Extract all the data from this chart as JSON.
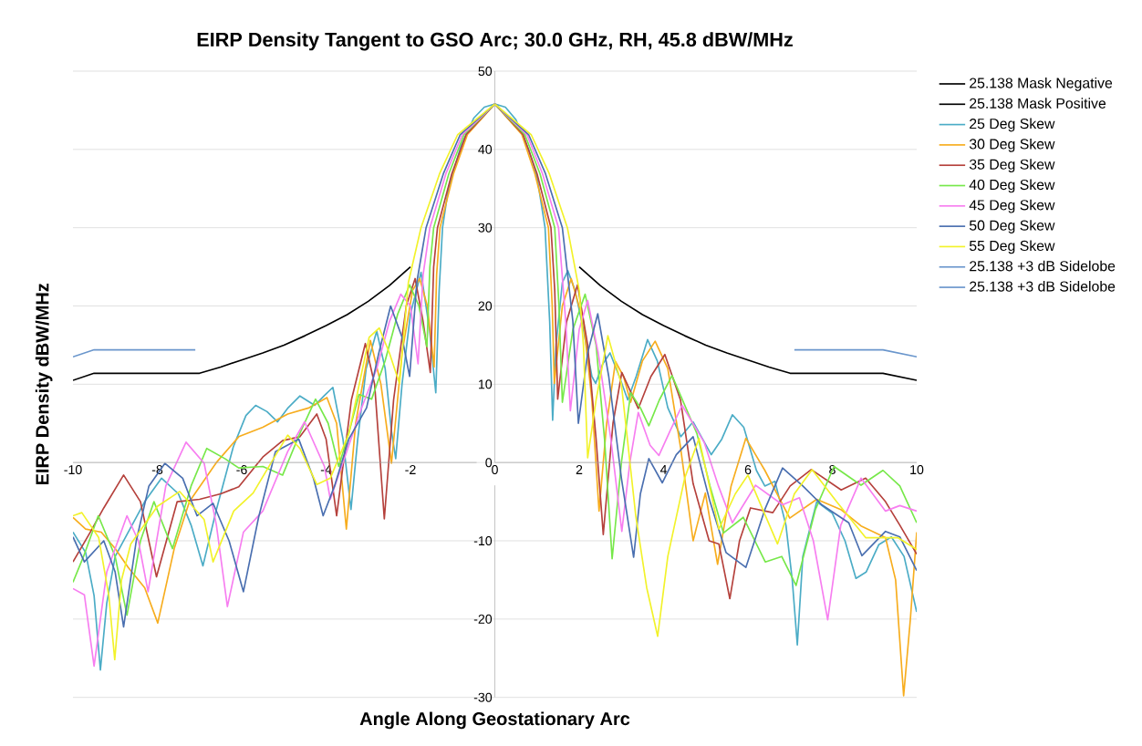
{
  "chart_data": {
    "type": "line",
    "title": "EIRP Density Tangent to GSO Arc; 30.0 GHz, RH, 45.8 dBW/MHz",
    "xlabel": "Angle Along Geostationary Arc",
    "ylabel": "EIRP Density dBW/MHz",
    "xlim": [
      -10,
      10
    ],
    "ylim": [
      -30,
      50
    ],
    "xticks": [
      -10,
      -8,
      -6,
      -4,
      -2,
      0,
      2,
      4,
      6,
      8,
      10
    ],
    "yticks": [
      -30,
      -20,
      -10,
      0,
      10,
      20,
      30,
      40,
      50
    ],
    "grid": "y",
    "legend": "right",
    "series": [
      {
        "name": "25.138 Mask Negative",
        "color": "#000000",
        "x": [
          -10,
          -9.5,
          -7,
          -6.5,
          -6,
          -5.5,
          -5,
          -4.5,
          -4,
          -3.5,
          -3,
          -2.5,
          -2
        ],
        "values": [
          10.5,
          11.4,
          11.4,
          12.2,
          13.1,
          14,
          15,
          16.2,
          17.5,
          18.9,
          20.6,
          22.6,
          25
        ]
      },
      {
        "name": "25.138 Mask Positive",
        "color": "#000000",
        "x": [
          2,
          2.5,
          3,
          3.5,
          4,
          4.5,
          5,
          5.5,
          6,
          6.5,
          7,
          9.2,
          10
        ],
        "values": [
          25,
          22.6,
          20.6,
          18.9,
          17.5,
          16.2,
          15,
          14,
          13.1,
          12.2,
          11.4,
          11.4,
          10.5
        ]
      },
      {
        "name": "25 Deg Skew",
        "color": "#4bacc6",
        "x": [
          -10,
          -9.7,
          -9.5,
          -9.35,
          -9.2,
          -9,
          -8.7,
          -8.3,
          -7.9,
          -7.5,
          -7.2,
          -6.92,
          -6.6,
          -6.2,
          -5.9,
          -5.67,
          -5.4,
          -5.15,
          -4.9,
          -4.62,
          -4.27,
          -4.05,
          -3.84,
          -3.6,
          -3.41,
          -3.25,
          -3.05,
          -2.8,
          -2.6,
          -2.45,
          -2.35,
          -2.2,
          -2,
          -1.75,
          -1.55,
          -1.4,
          -1.32,
          -1.24,
          -1.1,
          -0.8,
          -0.5,
          -0.25,
          0,
          0.25,
          0.5,
          0.8,
          1,
          1.19,
          1.3,
          1.37,
          1.45,
          1.6,
          1.73,
          1.9,
          2.1,
          2.3,
          2.39,
          2.55,
          2.73,
          2.95,
          3.15,
          3.35,
          3.62,
          3.85,
          4.1,
          4.41,
          4.7,
          5.13,
          5.38,
          5.63,
          5.9,
          6.2,
          6.4,
          6.64,
          6.9,
          7.05,
          7.17,
          7.3,
          7.63,
          8,
          8.3,
          8.56,
          8.8,
          9.1,
          9.4,
          9.7,
          10
        ],
        "values": [
          -8.9,
          -11.5,
          -17,
          -26.5,
          -18,
          -12,
          -9,
          -5,
          -2,
          -4,
          -8,
          -13.2,
          -6,
          2,
          6,
          7.3,
          6.5,
          5.2,
          7,
          8.5,
          7.3,
          8.5,
          9.6,
          3,
          -6,
          3,
          12,
          16.8,
          12,
          4,
          0.5,
          10,
          19,
          24.3,
          17,
          8.9,
          22,
          30,
          35,
          40.5,
          44,
          45.4,
          45.8,
          45.4,
          43.8,
          40,
          36.5,
          30,
          18,
          5.4,
          15,
          23,
          24.5,
          22,
          17,
          11,
          10.1,
          12.5,
          14,
          11,
          8,
          11,
          15.7,
          13,
          7,
          3.3,
          5.2,
          1,
          3,
          6.1,
          4.5,
          -1,
          -3,
          -2.4,
          -8,
          -15,
          -23.3,
          -12,
          -5,
          -6.5,
          -10,
          -14.8,
          -14,
          -10.5,
          -9.5,
          -12,
          -19.1
        ]
      },
      {
        "name": "30 Deg Skew",
        "color": "#f7ad1e",
        "x": [
          -10,
          -9.7,
          -9.33,
          -9,
          -8.69,
          -8.3,
          -7.99,
          -7.6,
          -7.24,
          -6.6,
          -6.07,
          -5.5,
          -4.91,
          -4.4,
          -3.98,
          -3.75,
          -3.52,
          -3.3,
          -2.95,
          -2.7,
          -2.45,
          -2.2,
          -1.95,
          -1.78,
          -1.6,
          -1.44,
          -1.38,
          -1.3,
          -0.98,
          -0.65,
          0,
          0.64,
          0.95,
          1.27,
          1.36,
          1.41,
          1.6,
          1.81,
          2.1,
          2.3,
          2.47,
          2.65,
          2.86,
          3.05,
          3.22,
          3.5,
          3.8,
          4.1,
          4.4,
          4.7,
          4.99,
          5.28,
          5.6,
          5.95,
          6.4,
          6.99,
          7.63,
          8.2,
          8.68,
          9.26,
          9.5,
          9.69,
          9.85,
          10
        ],
        "values": [
          -7,
          -8.5,
          -8.9,
          -11,
          -13.4,
          -16,
          -20.5,
          -11,
          -5,
          0,
          3.3,
          4.5,
          6.2,
          7,
          8.3,
          5,
          -8.5,
          5,
          15.6,
          10,
          -0.1,
          14,
          22,
          23.5,
          20,
          12.2,
          24,
          30,
          36.9,
          41.9,
          45.8,
          41.9,
          36.9,
          30,
          20,
          10.1,
          20,
          23.5,
          18,
          8,
          -6.2,
          5,
          12.9,
          11,
          7.7,
          13,
          15.5,
          12,
          2,
          -10,
          -3.9,
          -13,
          -3,
          3.1,
          -1,
          -7.1,
          -4.7,
          -6,
          -8.1,
          -9.6,
          -15,
          -29.8,
          -20,
          -8.9
        ]
      },
      {
        "name": "35 Deg Skew",
        "color": "#b5413c",
        "x": [
          -10,
          -9.6,
          -9.27,
          -8.8,
          -8.4,
          -8.02,
          -7.53,
          -7,
          -6.5,
          -6.07,
          -5.5,
          -5.03,
          -4.62,
          -4.22,
          -4,
          -3.75,
          -3.4,
          -3.07,
          -2.85,
          -2.62,
          -2.4,
          -2.1,
          -1.89,
          -1.7,
          -1.53,
          -1.45,
          -1.36,
          -1.02,
          -0.68,
          0,
          0.67,
          1,
          1.33,
          1.42,
          1.49,
          1.7,
          1.96,
          2.2,
          2.4,
          2.57,
          2.8,
          3.01,
          3.4,
          3.7,
          4.03,
          4.4,
          4.7,
          5.08,
          5.31,
          5.57,
          5.8,
          6.06,
          6.59,
          7,
          7.5,
          8.21,
          8.79,
          9.26,
          9.6,
          10
        ],
        "values": [
          -12.7,
          -9,
          -5.8,
          -1.6,
          -5,
          -14.6,
          -5,
          -4.7,
          -4,
          -3.1,
          0.7,
          2.8,
          3.3,
          6.2,
          3,
          -6.8,
          8,
          15.2,
          10,
          -7.2,
          8,
          20,
          23.5,
          18,
          11.5,
          25,
          30,
          36.9,
          41.9,
          45.8,
          41.9,
          36.9,
          30,
          22,
          8.1,
          18,
          22.7,
          15,
          3,
          -9.2,
          5,
          11.5,
          6.9,
          11,
          13.8,
          8,
          -2.7,
          -10,
          -10.4,
          -17.4,
          -10,
          -5.8,
          -6.4,
          -3,
          -0.9,
          -3.5,
          -2,
          -5,
          -8,
          -11.7
        ]
      },
      {
        "name": "40 Deg Skew",
        "color": "#77e84a",
        "x": [
          -10,
          -9.75,
          -9.4,
          -9,
          -8.72,
          -8.4,
          -8.08,
          -7.64,
          -7.2,
          -6.83,
          -6.4,
          -6.07,
          -5.5,
          -5.03,
          -4.6,
          -4.25,
          -3.95,
          -3.7,
          -3.45,
          -3.22,
          -2.92,
          -2.6,
          -2.3,
          -2.02,
          -1.8,
          -1.61,
          -1.54,
          -1.45,
          -1.09,
          -0.73,
          0,
          0.71,
          1.07,
          1.42,
          1.52,
          1.6,
          1.85,
          2.14,
          2.4,
          2.6,
          2.78,
          3,
          3.22,
          3.45,
          3.65,
          3.9,
          4.2,
          4.79,
          5.1,
          5.42,
          5.89,
          6.41,
          6.8,
          7.14,
          7.6,
          8.04,
          8.68,
          9.2,
          9.6,
          10
        ],
        "values": [
          -15.3,
          -12,
          -6.8,
          -12,
          -19.5,
          -10,
          -5,
          -11,
          -3,
          1.8,
          0.5,
          -0.7,
          -0.5,
          -1.6,
          4,
          8.1,
          5,
          -0.5,
          4,
          8.7,
          8.1,
          13,
          19,
          22.7,
          20,
          14.8,
          25,
          30,
          36.9,
          41.9,
          45.8,
          41.9,
          36.9,
          30,
          20,
          7.7,
          17,
          21.5,
          15,
          3,
          -12.3,
          0,
          8.9,
          7,
          4.7,
          8,
          11.1,
          3.7,
          -3,
          -9,
          -7,
          -12.7,
          -12,
          -15.7,
          -6,
          -0.5,
          -2.9,
          -1,
          -3,
          -7.7
        ]
      },
      {
        "name": "45 Deg Skew",
        "color": "#f77ef0",
        "x": [
          -10,
          -9.73,
          -9.5,
          -9.2,
          -8.72,
          -8.45,
          -8.22,
          -7.8,
          -7.32,
          -6.89,
          -6.6,
          -6.34,
          -5.96,
          -5.5,
          -4.91,
          -4.51,
          -4.04,
          -3.9,
          -3.6,
          -3.17,
          -2.8,
          -2.5,
          -2.23,
          -2,
          -1.82,
          -1.7,
          -1.54,
          -1.16,
          -0.77,
          0,
          0.76,
          1.13,
          1.51,
          1.68,
          1.79,
          2,
          2.2,
          2.45,
          2.75,
          3.01,
          3.2,
          3.4,
          3.68,
          3.89,
          4.15,
          4.44,
          4.96,
          5.3,
          5.63,
          6.18,
          6.82,
          7.22,
          7.55,
          7.89,
          8.2,
          8.68,
          9.26,
          9.6,
          10
        ],
        "values": [
          -16.1,
          -16.9,
          -26,
          -14,
          -6.8,
          -10,
          -16.5,
          -3,
          2.6,
          -0.1,
          -8,
          -18.4,
          -8.9,
          -6.2,
          1.4,
          5.2,
          -0.5,
          -4.7,
          0,
          6.8,
          12,
          18,
          21.5,
          20,
          12.6,
          24,
          30,
          36.9,
          41.9,
          45.8,
          41.9,
          36.9,
          30,
          18,
          6.6,
          17,
          20.7,
          14,
          3,
          -8.8,
          0,
          6.4,
          2.2,
          0.9,
          4,
          7.3,
          2.6,
          -3,
          -7.7,
          -2.9,
          -5.4,
          -4.5,
          -10,
          -20.1,
          -8,
          -2,
          -6.2,
          -5.5,
          -6.2
        ]
      },
      {
        "name": "50 Deg Skew",
        "color": "#4a6fb0",
        "x": [
          -10,
          -9.73,
          -9.27,
          -9,
          -8.8,
          -8.5,
          -8.2,
          -7.82,
          -7.4,
          -7.06,
          -6.68,
          -6.3,
          -5.96,
          -5.6,
          -5.2,
          -4.65,
          -4.3,
          -4.07,
          -3.8,
          -3.46,
          -3.04,
          -2.75,
          -2.47,
          -2.2,
          -2.02,
          -1.85,
          -1.63,
          -1.22,
          -0.82,
          0,
          0.8,
          1.2,
          1.6,
          1.85,
          1.98,
          2.2,
          2.44,
          2.7,
          3,
          3.29,
          3.45,
          3.65,
          3.97,
          4.3,
          4.7,
          5.1,
          5.48,
          5.95,
          6.4,
          6.82,
          7.3,
          7.75,
          8.39,
          8.7,
          9.26,
          9.6,
          10
        ],
        "values": [
          -9.5,
          -12.7,
          -10,
          -14,
          -21,
          -10,
          -3,
          -0.1,
          -2,
          -6.8,
          -5.2,
          -10,
          -16.5,
          -7,
          1.4,
          3,
          -2,
          -6.8,
          -3,
          3,
          7,
          14,
          20,
          16,
          11,
          23,
          30,
          36.9,
          41.9,
          45.8,
          41.9,
          36.9,
          30,
          18,
          5,
          14,
          19,
          11,
          -2,
          -12.1,
          -4,
          0.5,
          -2.6,
          1,
          3.3,
          -5,
          -11.5,
          -13.4,
          -6,
          -0.7,
          -3,
          -5.4,
          -7.7,
          -11.9,
          -8.8,
          -9.5,
          -13.8
        ]
      },
      {
        "name": "55 Deg Skew",
        "color": "#f2f22a",
        "x": [
          -10,
          -9.79,
          -9.39,
          -9.15,
          -9.01,
          -8.85,
          -8.63,
          -8,
          -7.47,
          -6.89,
          -6.68,
          -6.19,
          -5.73,
          -5.3,
          -4.91,
          -4.62,
          -4.22,
          -3.9,
          -3.46,
          -2.98,
          -2.74,
          -2.5,
          -2.26,
          -2.05,
          -1.75,
          -1.31,
          -0.88,
          0,
          0.86,
          1.29,
          1.72,
          2,
          2.1,
          2.2,
          2.4,
          2.68,
          3,
          3.34,
          3.6,
          3.86,
          4.1,
          4.5,
          4.84,
          5.31,
          5.7,
          6,
          6.35,
          6.7,
          7.1,
          7.52,
          8.1,
          8.79,
          9.55,
          10
        ],
        "values": [
          -6.8,
          -6.4,
          -9.6,
          -17,
          -25.2,
          -15,
          -10.4,
          -5.6,
          -3.7,
          -7.3,
          -12.7,
          -6.2,
          -3.9,
          0,
          3.5,
          1.8,
          -2.8,
          -2,
          3.7,
          16,
          17.2,
          14,
          10.1,
          23,
          30,
          36.9,
          41.9,
          45.8,
          41.9,
          36.9,
          30,
          22,
          15,
          0.6,
          8,
          16.2,
          10,
          -6.8,
          -16,
          -22.2,
          -12,
          -2,
          3.1,
          -8.5,
          -4,
          -1.6,
          -6,
          -10.4,
          -4,
          -0.9,
          -5,
          -9.6,
          -9.6,
          -11.1
        ]
      },
      {
        "name": "25.138 +3 dB Sidelobe",
        "color": "#6a96cc",
        "x": [
          -10,
          -9.5,
          -7.1
        ],
        "values": [
          13.5,
          14.4,
          14.4
        ]
      },
      {
        "name": "25.138 +3 dB Sidelobe",
        "color": "#6a96cc",
        "x": [
          7.1,
          9.2,
          10
        ],
        "values": [
          14.4,
          14.4,
          13.5
        ]
      }
    ]
  }
}
